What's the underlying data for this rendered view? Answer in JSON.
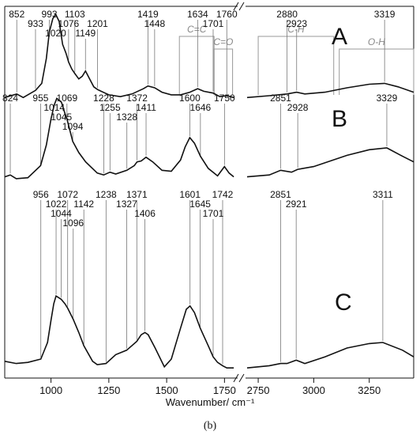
{
  "chart_data": {
    "type": "line",
    "xlabel": "Wavenumber/ cm⁻¹",
    "caption": "(b)",
    "x_axis_segments": [
      {
        "range": [
          800,
          1800
        ],
        "ticks": [
          1000,
          1250,
          1500,
          1750
        ]
      },
      {
        "range": [
          2700,
          3450
        ],
        "ticks": [
          2750,
          3000,
          3250
        ]
      }
    ],
    "x_axis_break": true,
    "ylim": [
      0,
      1
    ],
    "group_labels": [
      {
        "text": "C=C",
        "range": [
          1555,
          1705
        ]
      },
      {
        "text": "C=O",
        "range": [
          1705,
          1785
        ]
      },
      {
        "text": "C-H",
        "range": [
          2750,
          3090
        ]
      },
      {
        "text": "O-H",
        "range": [
          3115,
          3450
        ]
      }
    ],
    "series": [
      {
        "name": "A",
        "low_points": [
          [
            800,
            0.06
          ],
          [
            852,
            0.1
          ],
          [
            880,
            0.06
          ],
          [
            933,
            0.14
          ],
          [
            960,
            0.22
          ],
          [
            980,
            0.5
          ],
          [
            993,
            0.8
          ],
          [
            1008,
            0.95
          ],
          [
            1020,
            1.0
          ],
          [
            1035,
            0.92
          ],
          [
            1050,
            0.66
          ],
          [
            1065,
            0.56
          ],
          [
            1076,
            0.46
          ],
          [
            1090,
            0.38
          ],
          [
            1103,
            0.33
          ],
          [
            1120,
            0.27
          ],
          [
            1135,
            0.3
          ],
          [
            1149,
            0.36
          ],
          [
            1165,
            0.28
          ],
          [
            1185,
            0.18
          ],
          [
            1201,
            0.15
          ],
          [
            1250,
            0.09
          ],
          [
            1300,
            0.07
          ],
          [
            1350,
            0.1
          ],
          [
            1400,
            0.16
          ],
          [
            1419,
            0.19
          ],
          [
            1448,
            0.17
          ],
          [
            1480,
            0.12
          ],
          [
            1520,
            0.09
          ],
          [
            1560,
            0.09
          ],
          [
            1600,
            0.12
          ],
          [
            1634,
            0.16
          ],
          [
            1660,
            0.13
          ],
          [
            1701,
            0.11
          ],
          [
            1730,
            0.07
          ],
          [
            1760,
            0.08
          ],
          [
            1790,
            0.06
          ]
        ],
        "high_points": [
          [
            2700,
            0.06
          ],
          [
            2800,
            0.08
          ],
          [
            2880,
            0.1
          ],
          [
            2923,
            0.12
          ],
          [
            2960,
            0.1
          ],
          [
            3050,
            0.12
          ],
          [
            3150,
            0.17
          ],
          [
            3250,
            0.21
          ],
          [
            3319,
            0.22
          ],
          [
            3380,
            0.18
          ],
          [
            3450,
            0.12
          ]
        ],
        "peaks": [
          852,
          933,
          993,
          1020,
          1076,
          1103,
          1149,
          1201,
          1419,
          1448,
          1634,
          1701,
          1760,
          2880,
          2923,
          3319
        ]
      },
      {
        "name": "B",
        "low_points": [
          [
            800,
            0.08
          ],
          [
            824,
            0.1
          ],
          [
            850,
            0.06
          ],
          [
            900,
            0.07
          ],
          [
            955,
            0.2
          ],
          [
            980,
            0.42
          ],
          [
            1000,
            0.7
          ],
          [
            1014,
            0.85
          ],
          [
            1025,
            0.92
          ],
          [
            1045,
            0.88
          ],
          [
            1060,
            0.76
          ],
          [
            1069,
            0.7
          ],
          [
            1094,
            0.46
          ],
          [
            1120,
            0.34
          ],
          [
            1150,
            0.24
          ],
          [
            1200,
            0.12
          ],
          [
            1228,
            0.1
          ],
          [
            1255,
            0.13
          ],
          [
            1280,
            0.11
          ],
          [
            1328,
            0.15
          ],
          [
            1360,
            0.2
          ],
          [
            1372,
            0.24
          ],
          [
            1390,
            0.25
          ],
          [
            1411,
            0.29
          ],
          [
            1440,
            0.24
          ],
          [
            1480,
            0.15
          ],
          [
            1520,
            0.14
          ],
          [
            1560,
            0.26
          ],
          [
            1580,
            0.4
          ],
          [
            1600,
            0.5
          ],
          [
            1620,
            0.44
          ],
          [
            1646,
            0.3
          ],
          [
            1680,
            0.17
          ],
          [
            1720,
            0.09
          ],
          [
            1750,
            0.19
          ],
          [
            1770,
            0.12
          ],
          [
            1790,
            0.08
          ]
        ],
        "high_points": [
          [
            2700,
            0.08
          ],
          [
            2800,
            0.1
          ],
          [
            2851,
            0.15
          ],
          [
            2900,
            0.13
          ],
          [
            2928,
            0.16
          ],
          [
            3000,
            0.19
          ],
          [
            3150,
            0.31
          ],
          [
            3250,
            0.37
          ],
          [
            3329,
            0.39
          ],
          [
            3400,
            0.3
          ],
          [
            3450,
            0.24
          ]
        ],
        "peaks": [
          824,
          955,
          1014,
          1045,
          1069,
          1094,
          1228,
          1255,
          1328,
          1372,
          1411,
          1600,
          1646,
          1750,
          2851,
          2928,
          3329
        ]
      },
      {
        "name": "C",
        "low_points": [
          [
            800,
            0.08
          ],
          [
            850,
            0.06
          ],
          [
            900,
            0.07
          ],
          [
            956,
            0.1
          ],
          [
            985,
            0.25
          ],
          [
            1000,
            0.45
          ],
          [
            1012,
            0.6
          ],
          [
            1022,
            0.67
          ],
          [
            1044,
            0.64
          ],
          [
            1060,
            0.6
          ],
          [
            1072,
            0.56
          ],
          [
            1096,
            0.46
          ],
          [
            1120,
            0.34
          ],
          [
            1142,
            0.22
          ],
          [
            1180,
            0.08
          ],
          [
            1200,
            0.05
          ],
          [
            1238,
            0.06
          ],
          [
            1280,
            0.14
          ],
          [
            1327,
            0.18
          ],
          [
            1371,
            0.26
          ],
          [
            1390,
            0.32
          ],
          [
            1406,
            0.34
          ],
          [
            1420,
            0.32
          ],
          [
            1450,
            0.2
          ],
          [
            1490,
            0.03
          ],
          [
            1520,
            0.1
          ],
          [
            1560,
            0.38
          ],
          [
            1585,
            0.55
          ],
          [
            1601,
            0.58
          ],
          [
            1620,
            0.52
          ],
          [
            1645,
            0.38
          ],
          [
            1680,
            0.22
          ],
          [
            1701,
            0.12
          ],
          [
            1720,
            0.07
          ],
          [
            1742,
            0.04
          ],
          [
            1760,
            0.02
          ],
          [
            1790,
            0.02
          ]
        ],
        "high_points": [
          [
            2700,
            0.02
          ],
          [
            2800,
            0.04
          ],
          [
            2851,
            0.06
          ],
          [
            2880,
            0.06
          ],
          [
            2921,
            0.09
          ],
          [
            2960,
            0.06
          ],
          [
            3050,
            0.12
          ],
          [
            3150,
            0.2
          ],
          [
            3250,
            0.24
          ],
          [
            3311,
            0.25
          ],
          [
            3400,
            0.18
          ],
          [
            3450,
            0.12
          ]
        ],
        "peaks": [
          956,
          1022,
          1044,
          1072,
          1096,
          1142,
          1238,
          1327,
          1371,
          1406,
          1601,
          1645,
          1701,
          1742,
          2851,
          2921,
          3311
        ]
      }
    ]
  }
}
